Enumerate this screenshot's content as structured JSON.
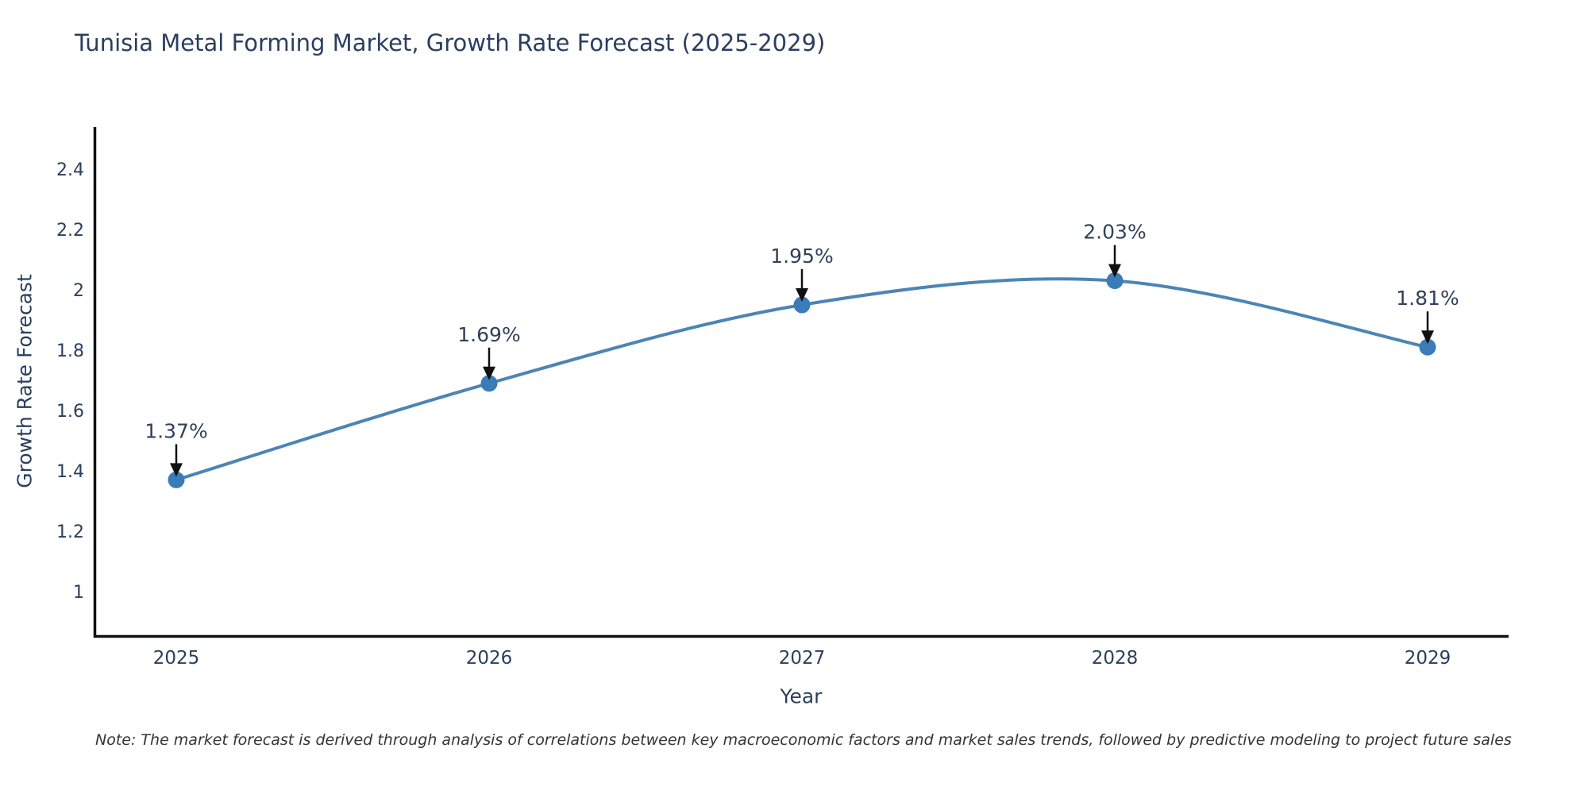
{
  "page": {
    "title": "Tunisia Metal Forming Market, Growth Rate Forecast (2025-2029)",
    "note": "Note: The market forecast is derived through analysis of correlations between key macroeconomic factors and market sales trends, followed by predictive modeling to project future sales"
  },
  "chart_data": {
    "type": "line",
    "title": "Tunisia Metal Forming Market, Growth Rate Forecast (2025-2029)",
    "xlabel": "Year",
    "ylabel": "Growth Rate Forecast",
    "x": [
      "2025",
      "2026",
      "2027",
      "2028",
      "2029"
    ],
    "series": [
      {
        "name": "Growth Rate Forecast",
        "values": [
          1.37,
          1.69,
          1.95,
          2.03,
          1.81
        ]
      }
    ],
    "point_labels": [
      "1.37%",
      "1.69%",
      "1.95%",
      "2.03%",
      "1.81%"
    ],
    "yticks": [
      "1",
      "1.2",
      "1.4",
      "1.6",
      "1.8",
      "2",
      "2.2",
      "2.4"
    ],
    "ylim": [
      0.85,
      2.55
    ],
    "line_shape": "spline",
    "markers": true,
    "grid": false,
    "legend_position": "none",
    "annotations_have_arrows": true,
    "colors": {
      "line": "#4c85b5",
      "marker": "#3a7cb8",
      "axis": "#111111",
      "tick_text": "#2a3f5f",
      "annotation_text": "#30405a",
      "arrow": "#111111"
    }
  }
}
